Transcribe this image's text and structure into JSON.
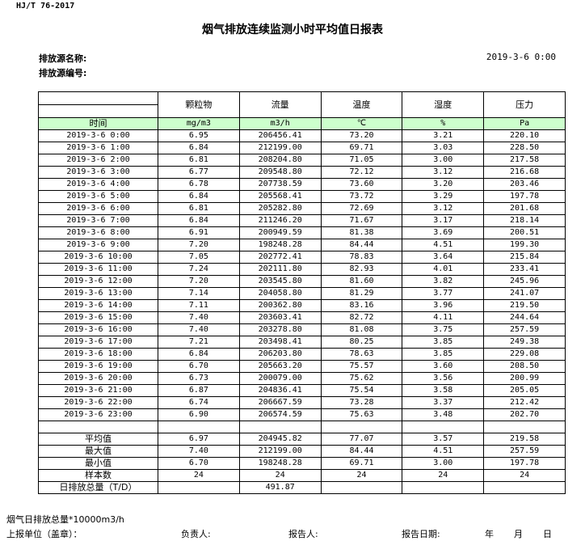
{
  "standard": "HJ/T  76-2017",
  "title": "烟气排放连续监测小时平均值日报表",
  "source_name_label": "排放源名称:",
  "source_code_label": "排放源编号:",
  "report_datetime": "2019-3-6  0:00",
  "columns": [
    {
      "name": "颗粒物",
      "unit": "mg/m3"
    },
    {
      "name": "流量",
      "unit": "m3/h"
    },
    {
      "name": "温度",
      "unit": "℃"
    },
    {
      "name": "湿度",
      "unit": "%"
    },
    {
      "name": "压力",
      "unit": "Pa"
    }
  ],
  "time_header": "时间",
  "rows": [
    [
      "2019-3-6  0:00",
      "6.95",
      "206456.41",
      "73.20",
      "3.21",
      "220.10"
    ],
    [
      "2019-3-6  1:00",
      "6.84",
      "212199.00",
      "69.71",
      "3.03",
      "228.50"
    ],
    [
      "2019-3-6  2:00",
      "6.81",
      "208204.80",
      "71.05",
      "3.00",
      "217.58"
    ],
    [
      "2019-3-6  3:00",
      "6.77",
      "209548.80",
      "72.12",
      "3.12",
      "216.68"
    ],
    [
      "2019-3-6  4:00",
      "6.78",
      "207738.59",
      "73.60",
      "3.20",
      "203.46"
    ],
    [
      "2019-3-6  5:00",
      "6.84",
      "205568.41",
      "73.72",
      "3.29",
      "197.78"
    ],
    [
      "2019-3-6  6:00",
      "6.81",
      "205282.80",
      "72.69",
      "3.12",
      "201.68"
    ],
    [
      "2019-3-6  7:00",
      "6.84",
      "211246.20",
      "71.67",
      "3.17",
      "218.14"
    ],
    [
      "2019-3-6  8:00",
      "6.91",
      "200949.59",
      "81.38",
      "3.69",
      "200.51"
    ],
    [
      "2019-3-6  9:00",
      "7.20",
      "198248.28",
      "84.44",
      "4.51",
      "199.30"
    ],
    [
      "2019-3-6 10:00",
      "7.05",
      "202772.41",
      "78.83",
      "3.64",
      "215.84"
    ],
    [
      "2019-3-6 11:00",
      "7.24",
      "202111.80",
      "82.93",
      "4.01",
      "233.41"
    ],
    [
      "2019-3-6 12:00",
      "7.20",
      "203545.80",
      "81.60",
      "3.82",
      "245.96"
    ],
    [
      "2019-3-6 13:00",
      "7.14",
      "204058.80",
      "81.29",
      "3.77",
      "241.07"
    ],
    [
      "2019-3-6 14:00",
      "7.11",
      "200362.80",
      "83.16",
      "3.96",
      "219.50"
    ],
    [
      "2019-3-6 15:00",
      "7.40",
      "203603.41",
      "82.72",
      "4.11",
      "244.64"
    ],
    [
      "2019-3-6 16:00",
      "7.40",
      "203278.80",
      "81.08",
      "3.75",
      "257.59"
    ],
    [
      "2019-3-6 17:00",
      "7.21",
      "203498.41",
      "80.25",
      "3.85",
      "249.38"
    ],
    [
      "2019-3-6 18:00",
      "6.84",
      "206203.80",
      "78.63",
      "3.85",
      "229.08"
    ],
    [
      "2019-3-6 19:00",
      "6.70",
      "205663.20",
      "75.57",
      "3.60",
      "208.50"
    ],
    [
      "2019-3-6 20:00",
      "6.73",
      "200079.00",
      "75.62",
      "3.56",
      "200.99"
    ],
    [
      "2019-3-6 21:00",
      "6.87",
      "204836.41",
      "75.54",
      "3.58",
      "205.05"
    ],
    [
      "2019-3-6 22:00",
      "6.74",
      "206667.59",
      "73.28",
      "3.37",
      "212.42"
    ],
    [
      "2019-3-6 23:00",
      "6.90",
      "206574.59",
      "75.63",
      "3.48",
      "202.70"
    ]
  ],
  "stats": [
    [
      "平均值",
      "6.97",
      "204945.82",
      "77.07",
      "3.57",
      "219.58"
    ],
    [
      "最大值",
      "7.40",
      "212199.00",
      "84.44",
      "4.51",
      "257.59"
    ],
    [
      "最小值",
      "6.70",
      "198248.28",
      "69.71",
      "3.00",
      "197.78"
    ],
    [
      "样本数",
      "24",
      "24",
      "24",
      "24",
      "24"
    ]
  ],
  "daily_total": {
    "label": "日排放总量（T/D）",
    "value": "491.87"
  },
  "footer": {
    "note": "烟气日排放总量*10000m3/h",
    "unit_label": "上报单位（盖章）：",
    "leader_label": "负责人:",
    "reporter_label": "报告人:",
    "date_label": "报告日期:",
    "year": "年",
    "month": "月",
    "day": "日"
  },
  "colors": {
    "unit_row_bg": "#ccffcc"
  }
}
